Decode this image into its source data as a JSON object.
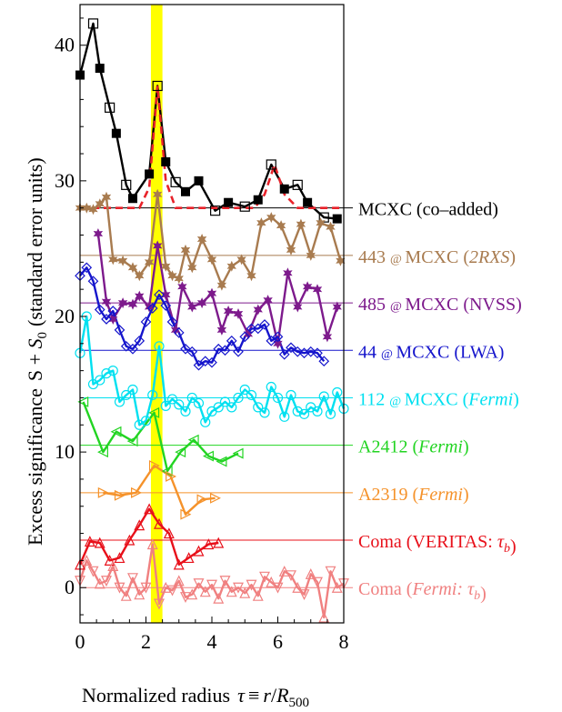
{
  "chart_data": {
    "type": "line",
    "xlabel_main": "Normalized radius",
    "xlabel_tau": "τ",
    "xlabel_equiv": "≡",
    "xlabel_r": "r",
    "xlabel_slash": "/",
    "xlabel_R": "R",
    "xlabel_sub": "500",
    "ylabel_main": "Excess significance",
    "ylabel_S": "S + ",
    "ylabel_S0": "S",
    "ylabel_S0_sub": "0",
    "ylabel_units": "(standard error units)",
    "xlim": [
      0,
      8
    ],
    "ylim": [
      -2.6,
      43
    ],
    "xticks": [
      0,
      2,
      4,
      6,
      8
    ],
    "yticks": [
      0,
      10,
      20,
      30,
      40
    ],
    "highlight_band": {
      "x0": 2.15,
      "x1": 2.5,
      "color": "#ffff00"
    },
    "series": [
      {
        "name": "MCXC (co–added)",
        "color": "#000000",
        "offset": 28,
        "label": [
          {
            "t": "MCXC (co–added)"
          }
        ],
        "x": [
          0,
          0.4,
          0.6,
          0.9,
          1.1,
          1.4,
          1.6,
          2.1,
          2.35,
          2.6,
          2.9,
          3.2,
          3.6,
          4.1,
          4.5,
          5.0,
          5.4,
          5.8,
          6.2,
          6.6,
          6.9,
          7.4,
          7.8
        ],
        "y": [
          37.8,
          41.6,
          38.3,
          35.4,
          33.5,
          29.7,
          28.7,
          30.5,
          37.0,
          31.4,
          29.9,
          29.2,
          30.0,
          27.8,
          28.4,
          28.1,
          28.6,
          31.2,
          29.4,
          29.7,
          28.4,
          27.3,
          27.2
        ],
        "mk": [
          "fs",
          "os",
          "fs",
          "os",
          "fs",
          "os",
          "fs",
          "fs",
          "os",
          "fs",
          "os",
          "fs",
          "fs",
          "os",
          "fs",
          "os",
          "fs",
          "os",
          "fs",
          "os",
          "fs",
          "os",
          "fs"
        ],
        "fit": {
          "color": "#e8222a",
          "x": [
            0,
            1.8,
            2.1,
            2.35,
            2.6,
            2.9,
            4.0,
            5.3,
            5.6,
            5.9,
            6.2,
            6.6,
            8
          ],
          "y": [
            28,
            28,
            29.5,
            37.0,
            30,
            28,
            28,
            28,
            29,
            31.2,
            29,
            28,
            28
          ]
        }
      },
      {
        "name": "443 @ MCXC (2RXS)",
        "color": "#a87b4f",
        "offset": 24.5,
        "label": [
          {
            "t": "443 "
          },
          {
            "t": "@ ",
            "s": true
          },
          {
            "t": "MCXC ("
          },
          {
            "t": "2RXS",
            "i": true
          },
          {
            "t": ")"
          }
        ],
        "x": [
          0,
          0.2,
          0.4,
          0.6,
          0.8,
          1.0,
          1.3,
          1.6,
          1.8,
          2.1,
          2.35,
          2.6,
          2.8,
          3.0,
          3.2,
          3.4,
          3.7,
          4.0,
          4.3,
          4.6,
          4.9,
          5.2,
          5.5,
          5.8,
          6.1,
          6.4,
          6.7,
          7.0,
          7.3,
          7.6,
          7.9
        ],
        "y": [
          28,
          28,
          27.9,
          28.3,
          28.8,
          24.2,
          24.1,
          23.6,
          23.0,
          24.0,
          29.0,
          23.7,
          23.0,
          22.8,
          24.9,
          23.6,
          25.7,
          24.2,
          22.3,
          23.7,
          24.2,
          23.0,
          26.9,
          27.3,
          26.7,
          24.9,
          26.8,
          24.5,
          26.9,
          26.6,
          24.1
        ],
        "mk": [
          "star"
        ]
      },
      {
        "name": "485 @ MCXC (NVSS)",
        "color": "#7d1a8c",
        "offset": 21,
        "label": [
          {
            "t": "485 "
          },
          {
            "t": "@ ",
            "s": true
          },
          {
            "t": "MCXC (NVSS)"
          }
        ],
        "x": [
          0.55,
          0.8,
          1.0,
          1.3,
          1.6,
          1.8,
          2.1,
          2.35,
          2.6,
          2.9,
          3.1,
          3.4,
          3.7,
          4.0,
          4.3,
          4.5,
          4.8,
          5.1,
          5.4,
          5.7,
          6.0,
          6.3,
          6.6,
          6.9,
          7.2,
          7.5,
          7.8
        ],
        "y": [
          26.1,
          21.1,
          19.8,
          21.0,
          20.9,
          21.5,
          20.7,
          25.2,
          21.6,
          19.0,
          22.2,
          20.7,
          21.0,
          21.7,
          19.0,
          20.4,
          20.2,
          18.7,
          20.5,
          21.2,
          18.0,
          23.2,
          20.7,
          22.2,
          22.0,
          18.5,
          20.7
        ],
        "mk": [
          "star"
        ]
      },
      {
        "name": "44 @ MCXC (LWA)",
        "color": "#1515cc",
        "offset": 17.5,
        "label": [
          {
            "t": "44 "
          },
          {
            "t": "@ ",
            "s": true
          },
          {
            "t": "MCXC (LWA)"
          }
        ],
        "x": [
          0,
          0.2,
          0.4,
          0.6,
          0.8,
          1.0,
          1.2,
          1.4,
          1.6,
          1.8,
          2.0,
          2.2,
          2.4,
          2.6,
          2.8,
          3.0,
          3.2,
          3.4,
          3.6,
          3.8,
          4.0,
          4.2,
          4.4,
          4.6,
          4.8,
          5.0,
          5.2,
          5.4,
          5.6,
          5.8,
          6.0,
          6.2,
          6.4,
          6.6,
          6.8,
          7.0,
          7.2,
          7.4
        ],
        "y": [
          23.0,
          23.6,
          22.6,
          20.5,
          19.8,
          20.4,
          19.0,
          17.8,
          17.6,
          18.2,
          19.6,
          20.6,
          21.6,
          20.8,
          19.6,
          18.8,
          17.6,
          17.4,
          16.4,
          16.7,
          16.6,
          17.6,
          17.5,
          18.2,
          17.4,
          18.5,
          19.1,
          19.1,
          19.4,
          18.2,
          18.5,
          17.2,
          17.7,
          17.4,
          17.3,
          17.4,
          17.3,
          16.7
        ],
        "mk": [
          "dia"
        ]
      },
      {
        "name": "112 @ MCXC (Fermi)",
        "color": "#00e0f0",
        "offset": 14,
        "label": [
          {
            "t": "112 "
          },
          {
            "t": "@ ",
            "s": true
          },
          {
            "t": "MCXC ("
          },
          {
            "t": "Fermi",
            "i": true
          },
          {
            "t": ")"
          }
        ],
        "x": [
          0,
          0.2,
          0.4,
          0.6,
          0.8,
          1.0,
          1.2,
          1.4,
          1.6,
          1.8,
          2.0,
          2.2,
          2.4,
          2.6,
          2.8,
          3.0,
          3.2,
          3.4,
          3.6,
          3.8,
          4.0,
          4.2,
          4.4,
          4.6,
          4.8,
          5.0,
          5.2,
          5.4,
          5.6,
          5.8,
          6.0,
          6.2,
          6.4,
          6.6,
          6.8,
          7.0,
          7.2,
          7.4,
          7.6,
          7.8,
          8.0
        ],
        "y": [
          17.3,
          20.0,
          15.0,
          15.3,
          15.8,
          16.0,
          13.7,
          14.2,
          14.6,
          12.0,
          12.3,
          14.2,
          17.8,
          13.4,
          13.9,
          13.5,
          13.0,
          14.0,
          13.6,
          12.2,
          13.0,
          13.3,
          13.7,
          13.3,
          14.0,
          14.6,
          14.2,
          13.3,
          12.9,
          14.8,
          14.0,
          12.6,
          14.2,
          13.0,
          12.8,
          13.3,
          13.0,
          14.1,
          12.8,
          14.4,
          13.2
        ],
        "mk": [
          "circ"
        ]
      },
      {
        "name": "A2412 (Fermi)",
        "color": "#22d422",
        "offset": 10.5,
        "label": [
          {
            "t": "A2412 ("
          },
          {
            "t": "Fermi",
            "i": true
          },
          {
            "t": ")"
          }
        ],
        "x": [
          0.1,
          0.7,
          1.1,
          1.6,
          2.25,
          2.65,
          3.05,
          3.45,
          3.9,
          4.3,
          4.8
        ],
        "y": [
          13.7,
          10.0,
          11.5,
          10.8,
          12.9,
          8.6,
          10.0,
          10.9,
          9.7,
          9.3,
          9.9
        ],
        "mk": [
          "tril"
        ]
      },
      {
        "name": "A2319 (Fermi)",
        "color": "#f5922a",
        "offset": 7,
        "label": [
          {
            "t": "A2319 ("
          },
          {
            "t": "Fermi",
            "i": true
          },
          {
            "t": ")"
          }
        ],
        "x": [
          0.7,
          1.2,
          1.7,
          2.25,
          2.75,
          3.2,
          3.7,
          4.1
        ],
        "y": [
          7.0,
          6.8,
          7.0,
          9.0,
          8.2,
          5.4,
          6.5,
          6.6
        ],
        "mk": [
          "trir"
        ]
      },
      {
        "name": "Coma (VERITAS: τb)",
        "color": "#e8101a",
        "offset": 3.5,
        "label": [
          {
            "t": "Coma (VERITAS: "
          },
          {
            "t": "τ",
            "i": true
          },
          {
            "t": "b",
            "i": true,
            "sub": true
          },
          {
            "t": ")"
          }
        ],
        "x": [
          0,
          0.3,
          0.6,
          0.9,
          1.2,
          1.5,
          1.8,
          2.1,
          2.4,
          2.7,
          3.0,
          3.3,
          3.6,
          3.9,
          4.2
        ],
        "y": [
          1.7,
          3.4,
          3.3,
          2.0,
          2.2,
          3.5,
          4.6,
          5.8,
          4.7,
          4.0,
          1.7,
          2.2,
          2.7,
          3.2,
          3.3
        ],
        "mk": [
          "triu"
        ]
      },
      {
        "name": "Coma (Fermi: τb)",
        "color": "#f08080",
        "offset": 0,
        "label": [
          {
            "t": "Coma ("
          },
          {
            "t": "Fermi: τ",
            "i": true
          },
          {
            "t": "b",
            "i": true,
            "sub": true
          },
          {
            "t": ")"
          }
        ],
        "x": [
          0,
          0.2,
          0.4,
          0.6,
          0.8,
          1.0,
          1.2,
          1.4,
          1.6,
          1.8,
          2.0,
          2.2,
          2.4,
          2.6,
          2.8,
          3.0,
          3.2,
          3.4,
          3.6,
          3.8,
          4.0,
          4.2,
          4.4,
          4.6,
          4.8,
          5.0,
          5.2,
          5.4,
          5.6,
          5.8,
          6.0,
          6.2,
          6.4,
          6.6,
          6.8,
          7.0,
          7.2,
          7.4,
          7.6,
          7.8,
          8.0
        ],
        "y": [
          0.5,
          2.0,
          1.2,
          0.3,
          0.5,
          1.6,
          0.0,
          -0.6,
          0.7,
          -0.5,
          0.0,
          3.2,
          -1.2,
          0.0,
          -0.2,
          0.5,
          -0.7,
          -0.5,
          0.3,
          -0.3,
          0.2,
          -0.8,
          0.5,
          -0.3,
          0.0,
          -0.4,
          0.2,
          -0.6,
          0.8,
          0.4,
          0.0,
          1.2,
          0.9,
          0.0,
          -0.5,
          1.0,
          0.4,
          -2.2,
          1.2,
          0.0,
          0.3
        ],
        "mk": [
          "trid",
          "triu"
        ]
      }
    ]
  }
}
